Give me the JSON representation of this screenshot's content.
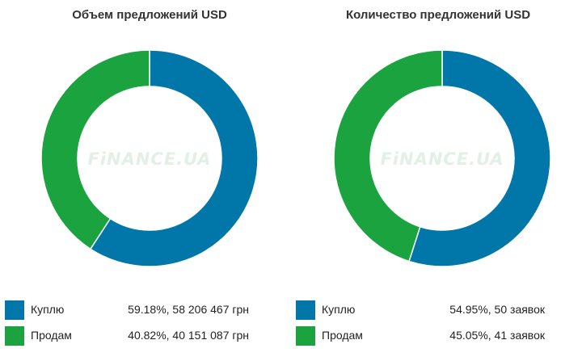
{
  "watermark": "FiNANCE.UA",
  "colors": {
    "buy": "#0077a8",
    "sell": "#1aa33e",
    "hole": "#ffffff"
  },
  "chart_data": [
    {
      "type": "pie",
      "title": "Объем предложений USD",
      "categories": [
        "Куплю",
        "Продам"
      ],
      "values": [
        59.18,
        40.82
      ],
      "value_labels": [
        "59.18%, 58 206 467 грн",
        "40.82%, 40 151 087 грн"
      ],
      "legend": "bottom"
    },
    {
      "type": "pie",
      "title": "Количество предложений USD",
      "categories": [
        "Куплю",
        "Продам"
      ],
      "values": [
        54.95,
        45.05
      ],
      "value_labels": [
        "54.95%, 50 заявок",
        "45.05%, 41 заявок"
      ],
      "legend": "bottom"
    }
  ]
}
